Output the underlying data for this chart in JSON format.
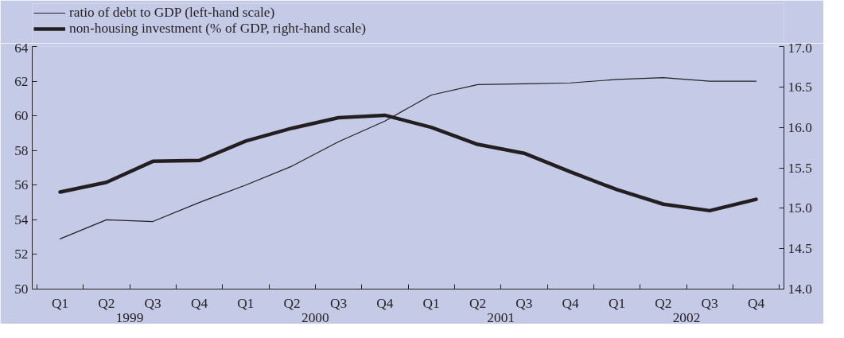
{
  "chart_data": {
    "type": "line",
    "categories": [
      "Q1",
      "Q2",
      "Q3",
      "Q4",
      "Q1",
      "Q2",
      "Q3",
      "Q4",
      "Q1",
      "Q2",
      "Q3",
      "Q4",
      "Q1",
      "Q2",
      "Q3",
      "Q4"
    ],
    "series": [
      {
        "name": "ratio of debt to GDP (left-hand scale)",
        "color": "#231f20",
        "values": [
          52.9,
          54.0,
          53.9,
          55.0,
          56.0,
          57.1,
          58.5,
          59.7,
          61.2,
          61.8,
          61.85,
          61.9,
          62.1,
          62.2,
          62.0,
          62.0
        ]
      },
      {
        "name": "non-housing investment (% of GDP, right-hand scale)",
        "color": "#231f20",
        "axis": "y2",
        "values": [
          15.2,
          15.32,
          15.58,
          15.59,
          15.83,
          15.99,
          16.12,
          16.15,
          16.0,
          15.79,
          15.68,
          15.45,
          15.23,
          15.05,
          14.97,
          15.11
        ]
      }
    ],
    "ylim": [
      50,
      64
    ],
    "yticks": [
      50,
      52,
      54,
      56,
      58,
      60,
      62,
      64
    ],
    "y2lim": [
      14,
      17
    ],
    "y2ticks": [
      {
        "value": 14,
        "label": "14.0"
      },
      {
        "value": 14.5,
        "label": "14.5"
      },
      {
        "value": 15,
        "label": "15.0"
      },
      {
        "value": 15.5,
        "label": "15.5"
      },
      {
        "value": 16,
        "label": "16.0"
      },
      {
        "value": 16.5,
        "label": "16.5"
      },
      {
        "value": 17,
        "label": "17.0"
      }
    ],
    "annotations": [
      "1999",
      "2000",
      "2001",
      "2002"
    ],
    "grid": false,
    "legend": "top left",
    "marker": "none",
    "line_style": "solid"
  }
}
